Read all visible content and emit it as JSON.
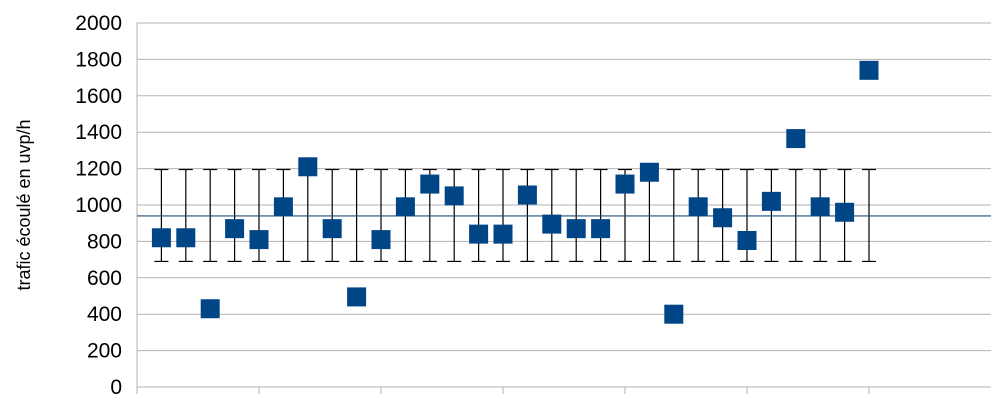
{
  "chart_data": {
    "type": "scatter",
    "ylabel": "trafic écoulé en uvp/h",
    "ylim": [
      0,
      2000
    ],
    "yticks": [
      0,
      200,
      400,
      600,
      800,
      1000,
      1200,
      1400,
      1600,
      1800,
      2000
    ],
    "grid": true,
    "x": [
      1,
      2,
      3,
      4,
      5,
      6,
      7,
      8,
      9,
      10,
      11,
      12,
      13,
      14,
      15,
      16,
      17,
      18,
      19,
      20,
      21,
      22,
      23,
      24,
      25,
      26,
      27,
      28,
      29,
      30
    ],
    "xlim": [
      0,
      35
    ],
    "series": [
      {
        "values": [
          820,
          820,
          430,
          870,
          810,
          990,
          1210,
          870,
          495,
          810,
          990,
          1115,
          1050,
          840,
          840,
          1055,
          895,
          870,
          870,
          1115,
          1180,
          400,
          990,
          930,
          805,
          1020,
          1365,
          990,
          960,
          1740
        ],
        "color": "#004586",
        "marker": "square"
      }
    ],
    "error_bars": {
      "low": 690,
      "high": 1195,
      "color": "#000000"
    },
    "reference_line": {
      "value": 940,
      "color": "#1f4e79"
    }
  }
}
